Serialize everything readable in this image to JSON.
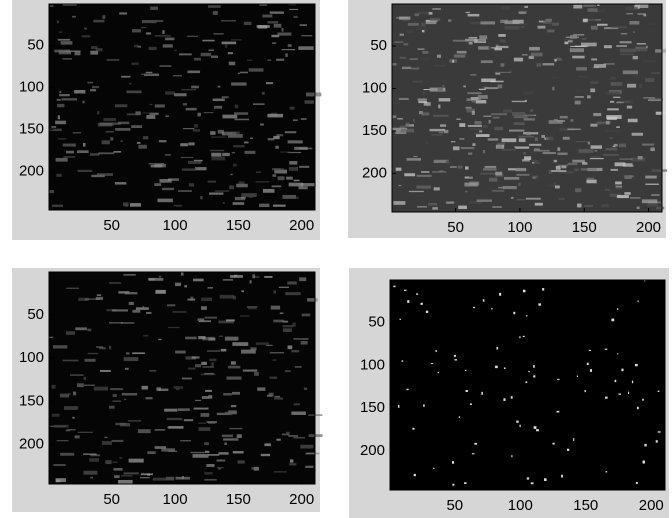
{
  "chart_data": [
    {
      "type": "image",
      "xlim": [
        0.5,
        210.5
      ],
      "ylim": [
        0.5,
        245.5
      ],
      "xticks": [
        50,
        100,
        150,
        200
      ],
      "yticks": [
        50,
        100,
        150,
        200
      ]
    },
    {
      "type": "image",
      "xlim": [
        0.5,
        210.5
      ],
      "ylim": [
        0.5,
        245.5
      ],
      "xticks": [
        50,
        100,
        150,
        200
      ],
      "yticks": [
        50,
        100,
        150,
        200
      ]
    },
    {
      "type": "image",
      "xlim": [
        0.5,
        210.5
      ],
      "ylim": [
        0.5,
        245.5
      ],
      "xticks": [
        50,
        100,
        150,
        200
      ],
      "yticks": [
        50,
        100,
        150,
        200
      ]
    },
    {
      "type": "image",
      "xlim": [
        0.5,
        210.5
      ],
      "ylim": [
        0.5,
        245.5
      ],
      "xticks": [
        50,
        100,
        150,
        200
      ],
      "yticks": [
        50,
        100,
        150,
        200
      ]
    }
  ]
}
